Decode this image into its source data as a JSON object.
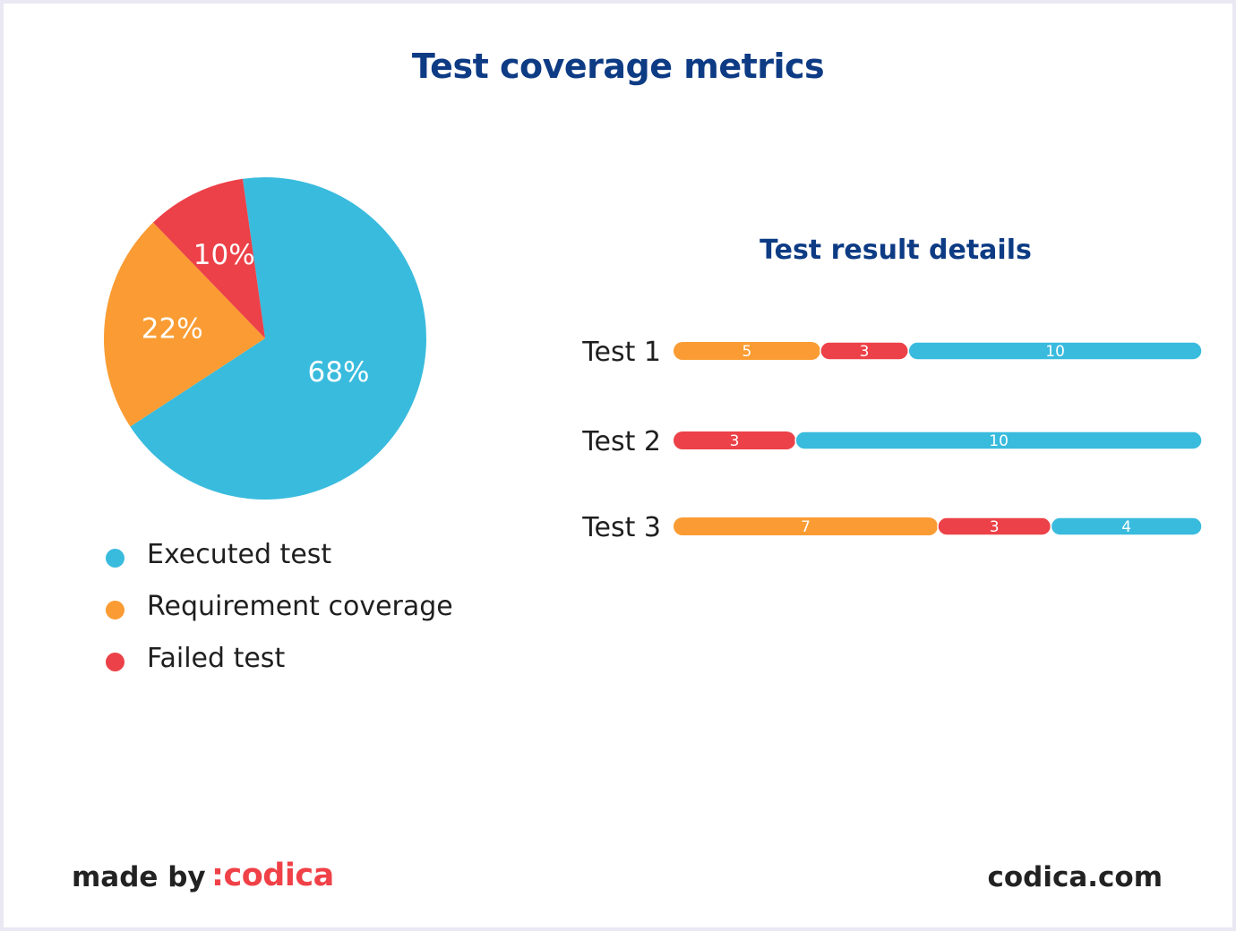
{
  "title": "Test coverage metrics",
  "colors": {
    "executed": "#39bbdd",
    "requirement": "#fa9c33",
    "failed": "#ec4148",
    "title": "#0d3b84"
  },
  "chart_data": [
    {
      "type": "pie",
      "title": "",
      "slices": [
        {
          "label": "Executed test",
          "value": 68,
          "value_label": "68%",
          "color": "#39bbdd"
        },
        {
          "label": "Requirement coverage",
          "value": 22,
          "value_label": "22%",
          "color": "#fa9c33"
        },
        {
          "label": "Failed test",
          "value": 10,
          "value_label": "10%",
          "color": "#ec4148"
        }
      ],
      "legend": [
        "Executed test",
        "Requirement coverage",
        "Failed test"
      ],
      "legend_position": "bottom"
    },
    {
      "type": "bar",
      "orientation": "horizontal",
      "stacked": true,
      "title": "Test result details",
      "categories": [
        "Test 1",
        "Test 2",
        "Test 3"
      ],
      "series": [
        {
          "color": "#fa9c33",
          "values": [
            5,
            0,
            7
          ]
        },
        {
          "color": "#ec4148",
          "values": [
            3,
            3,
            3
          ]
        },
        {
          "color": "#39bbdd",
          "values": [
            10,
            10,
            4
          ]
        }
      ]
    }
  ],
  "footer": {
    "made_by": "made by",
    "logo": ":codica",
    "site": "codica.com"
  }
}
